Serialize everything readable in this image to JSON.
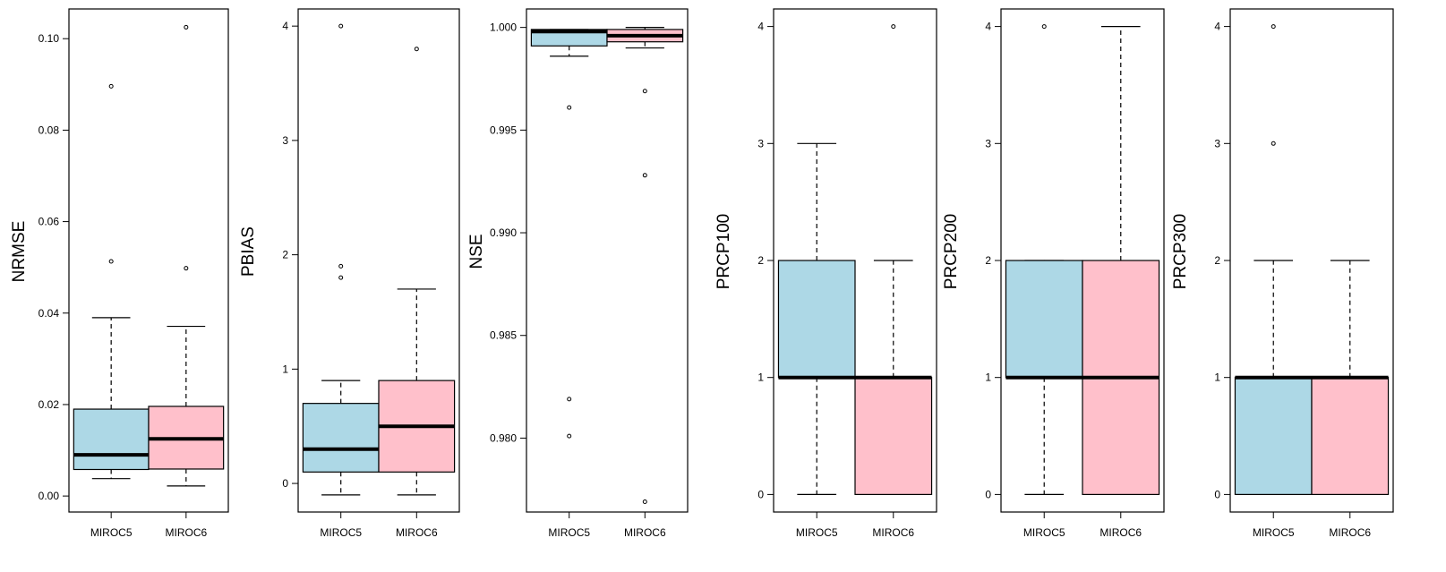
{
  "colors": {
    "miroc5": "#add8e6",
    "miroc6": "#ffc0cb",
    "stroke": "#000000"
  },
  "chart_data": [
    {
      "type": "boxplot",
      "ylabel": "NRMSE",
      "categories": [
        "MIROC5",
        "MIROC6"
      ],
      "ylim": [
        -0.0035,
        0.1065
      ],
      "yticks": [
        0.0,
        0.02,
        0.04,
        0.06,
        0.08,
        0.1
      ],
      "ytick_labels": [
        "0.00",
        "0.02",
        "0.04",
        "0.06",
        "0.08",
        "0.10"
      ],
      "boxes": [
        {
          "name": "MIROC5",
          "whisker_low": 0.0038,
          "q1": 0.0058,
          "median": 0.009,
          "q3": 0.019,
          "whisker_high": 0.039,
          "outliers": [
            0.0513,
            0.0896
          ]
        },
        {
          "name": "MIROC6",
          "whisker_low": 0.0022,
          "q1": 0.0059,
          "median": 0.0125,
          "q3": 0.0196,
          "whisker_high": 0.0371,
          "outliers": [
            0.0498,
            0.1025
          ]
        }
      ]
    },
    {
      "type": "boxplot",
      "ylabel": "PBIAS",
      "categories": [
        "MIROC5",
        "MIROC6"
      ],
      "ylim": [
        -0.25,
        4.15
      ],
      "yticks": [
        0,
        1,
        2,
        3,
        4
      ],
      "ytick_labels": [
        "0",
        "1",
        "2",
        "3",
        "4"
      ],
      "boxes": [
        {
          "name": "MIROC5",
          "whisker_low": -0.1,
          "q1": 0.1,
          "median": 0.3,
          "q3": 0.7,
          "whisker_high": 0.9,
          "outliers": [
            1.8,
            1.9,
            4.0
          ]
        },
        {
          "name": "MIROC6",
          "whisker_low": -0.1,
          "q1": 0.1,
          "median": 0.5,
          "q3": 0.9,
          "whisker_high": 1.7,
          "outliers": [
            3.8
          ]
        }
      ]
    },
    {
      "type": "boxplot",
      "ylabel": "NSE",
      "categories": [
        "MIROC5",
        "MIROC6"
      ],
      "ylim": [
        0.9764,
        1.0009
      ],
      "yticks": [
        0.98,
        0.985,
        0.99,
        0.995,
        1.0
      ],
      "ytick_labels": [
        "0.980",
        "0.985",
        "0.990",
        "0.995",
        "1.000"
      ],
      "boxes": [
        {
          "name": "MIROC5",
          "whisker_low": 0.9986,
          "q1": 0.9991,
          "median": 0.9998,
          "q3": 0.9999,
          "whisker_high": 0.9999,
          "outliers": [
            0.9961,
            0.9819,
            0.9801
          ]
        },
        {
          "name": "MIROC6",
          "whisker_low": 0.999,
          "q1": 0.9993,
          "median": 0.9996,
          "q3": 0.9999,
          "whisker_high": 1.0,
          "outliers": [
            0.9969,
            0.9928,
            0.9769
          ]
        }
      ]
    },
    {
      "type": "boxplot",
      "ylabel": "PRCP100",
      "categories": [
        "MIROC5",
        "MIROC6"
      ],
      "ylim": [
        -0.15,
        4.15
      ],
      "yticks": [
        0,
        1,
        2,
        3,
        4
      ],
      "ytick_labels": [
        "0",
        "1",
        "2",
        "3",
        "4"
      ],
      "boxes": [
        {
          "name": "MIROC5",
          "whisker_low": 0,
          "q1": 1,
          "median": 1,
          "q3": 2,
          "whisker_high": 3,
          "outliers": []
        },
        {
          "name": "MIROC6",
          "whisker_low": 0,
          "q1": 0,
          "median": 1,
          "q3": 1,
          "whisker_high": 2,
          "outliers": [
            4
          ]
        }
      ]
    },
    {
      "type": "boxplot",
      "ylabel": "PRCP200",
      "categories": [
        "MIROC5",
        "MIROC6"
      ],
      "ylim": [
        -0.15,
        4.15
      ],
      "yticks": [
        0,
        1,
        2,
        3,
        4
      ],
      "ytick_labels": [
        "0",
        "1",
        "2",
        "3",
        "4"
      ],
      "boxes": [
        {
          "name": "MIROC5",
          "whisker_low": 0,
          "q1": 1,
          "median": 1,
          "q3": 2,
          "whisker_high": 2,
          "outliers": [
            4
          ]
        },
        {
          "name": "MIROC6",
          "whisker_low": 0,
          "q1": 0,
          "median": 1,
          "q3": 2,
          "whisker_high": 4,
          "outliers": []
        }
      ]
    },
    {
      "type": "boxplot",
      "ylabel": "PRCP300",
      "categories": [
        "MIROC5",
        "MIROC6"
      ],
      "ylim": [
        -0.15,
        4.15
      ],
      "yticks": [
        0,
        1,
        2,
        3,
        4
      ],
      "ytick_labels": [
        "0",
        "1",
        "2",
        "3",
        "4"
      ],
      "boxes": [
        {
          "name": "MIROC5",
          "whisker_low": 0,
          "q1": 0,
          "median": 1,
          "q3": 1,
          "whisker_high": 2,
          "outliers": [
            3,
            4
          ]
        },
        {
          "name": "MIROC6",
          "whisker_low": 0,
          "q1": 0,
          "median": 1,
          "q3": 1,
          "whisker_high": 2,
          "outliers": []
        }
      ]
    }
  ]
}
